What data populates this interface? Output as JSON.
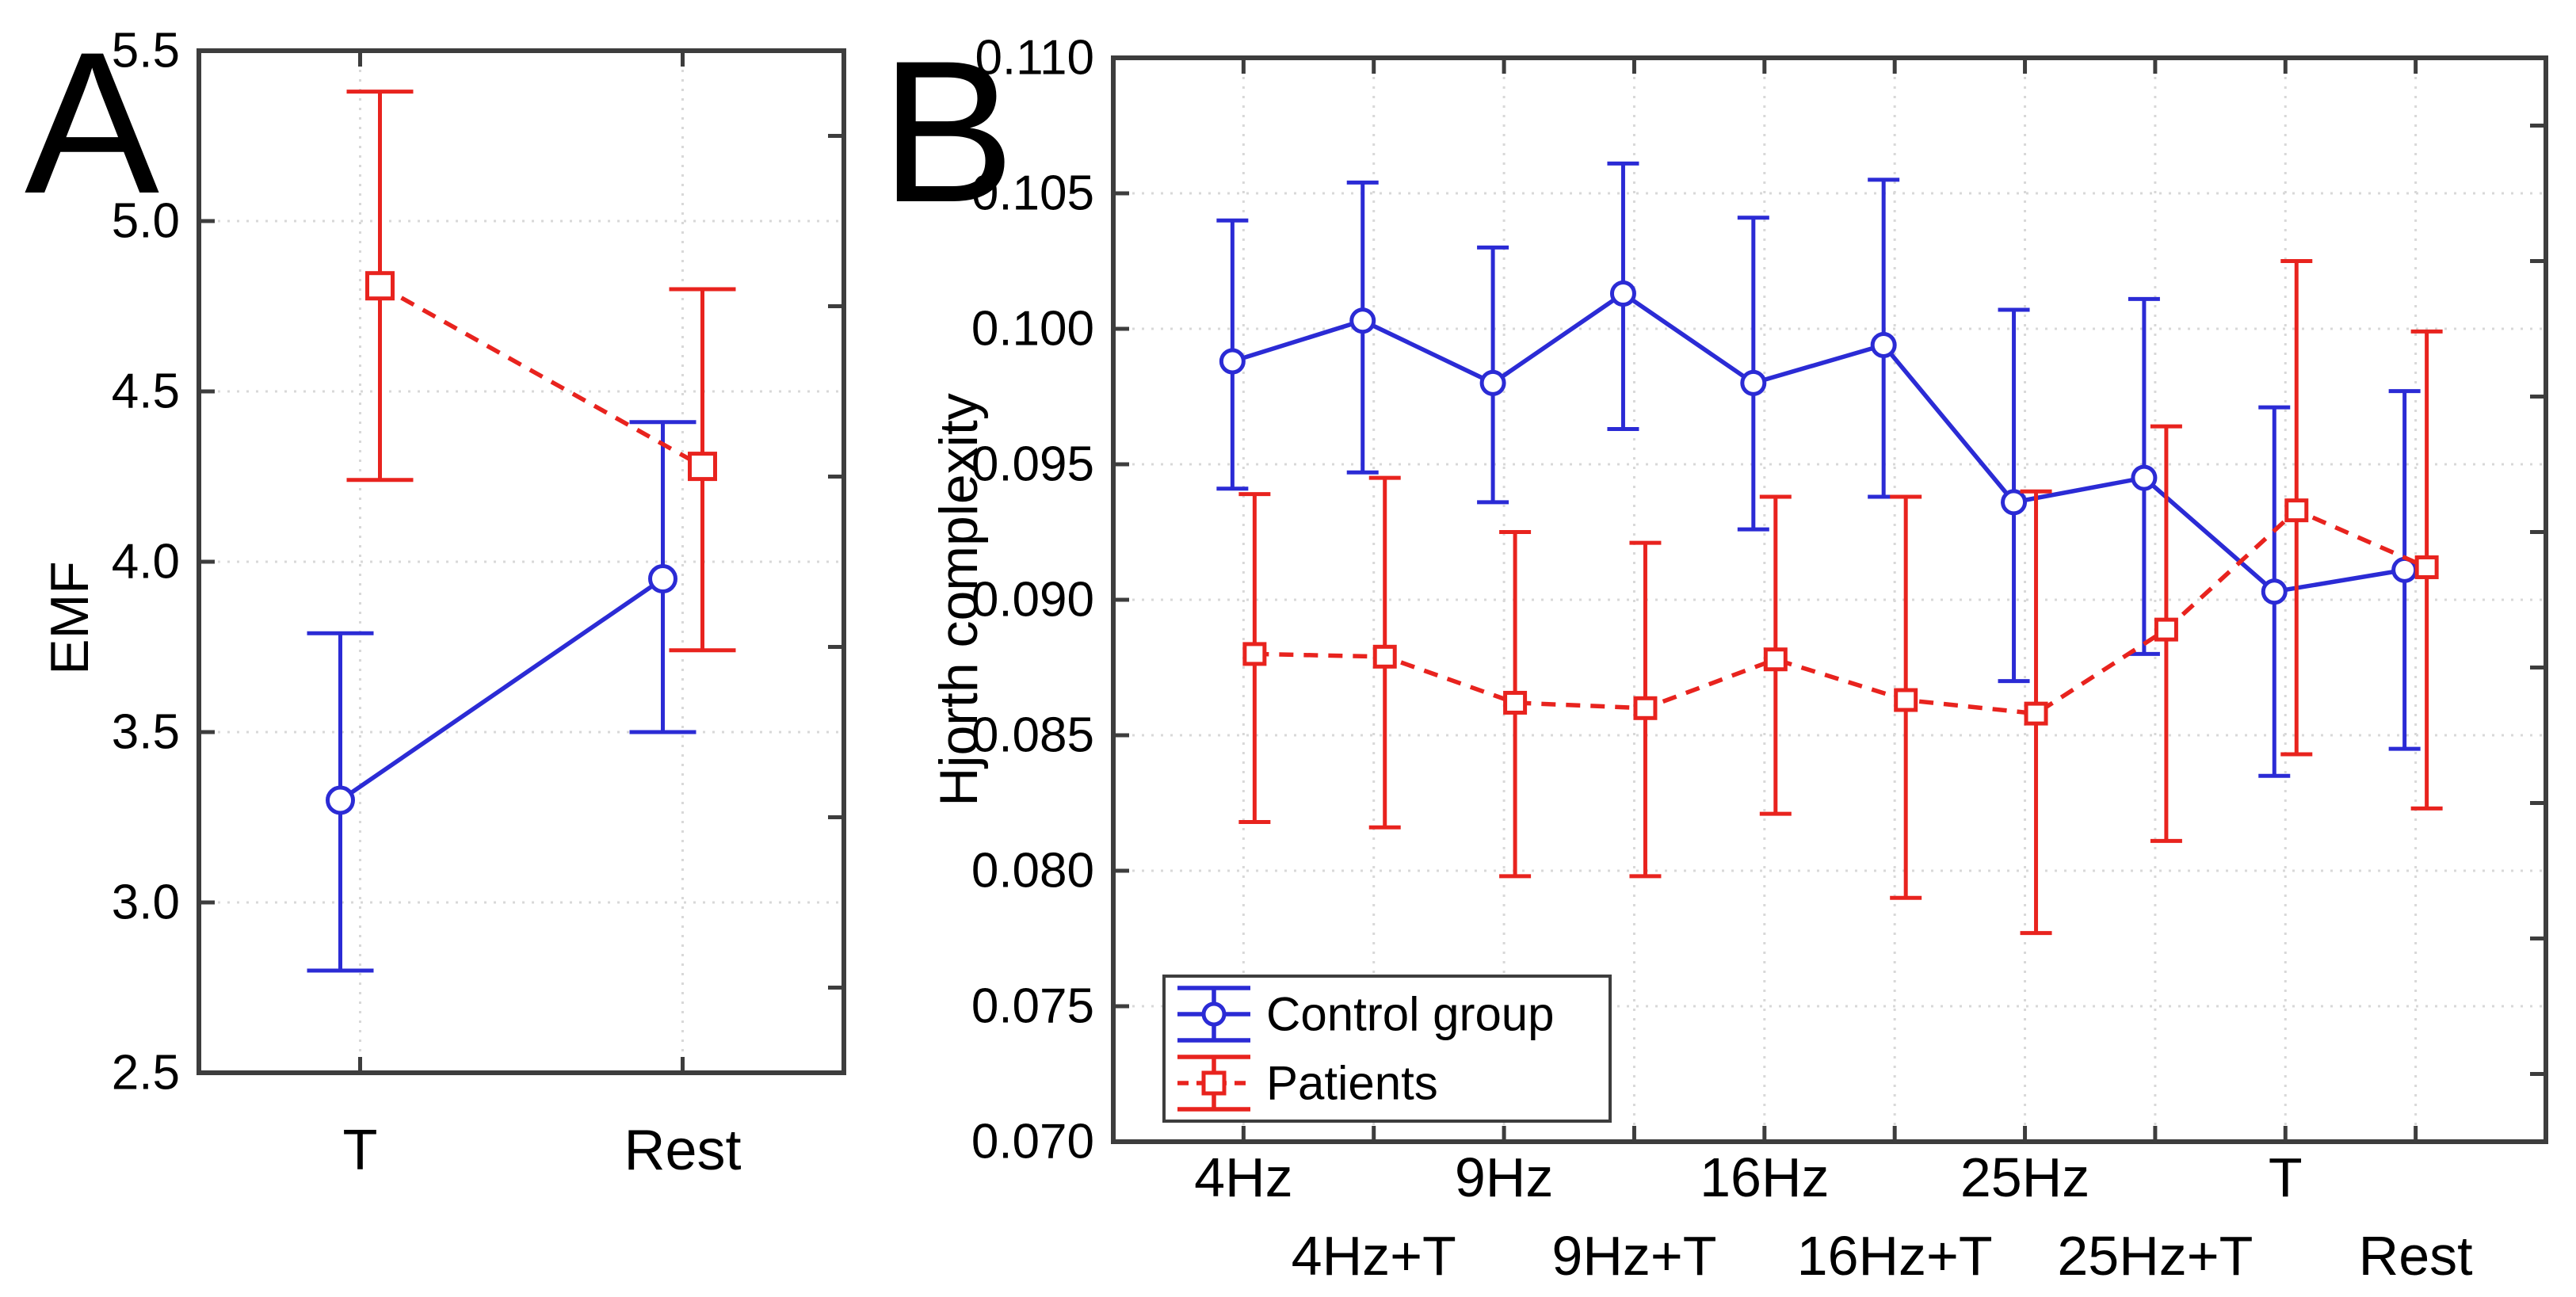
{
  "figure": {
    "background": "#ffffff",
    "panel_labels": [
      "A",
      "B"
    ]
  },
  "colors": {
    "axis": "#3d3d3d",
    "grid": "#d8d8d8",
    "text": "#000000",
    "control_group": "#2b2bd5",
    "patients": "#e8231e"
  },
  "legend": {
    "entries": [
      {
        "label": "Control group"
      },
      {
        "label": "Patients"
      }
    ]
  },
  "chart_data": [
    {
      "type": "line",
      "panel_label": "A",
      "title": "",
      "xlabel": "",
      "ylabel": "EMF",
      "ylim": [
        2.5,
        5.5
      ],
      "ytick_step": 0.5,
      "ytick_decimals": 1,
      "grid": true,
      "legend_position": null,
      "categories": [
        "T",
        "Rest"
      ],
      "series": [
        {
          "name": "Control group",
          "color": "#2b2bd5",
          "line_style": "solid",
          "marker": "circle",
          "values": [
            3.3,
            3.95
          ],
          "err_low": [
            2.8,
            3.5
          ],
          "err_high": [
            3.79,
            4.41
          ]
        },
        {
          "name": "Patients",
          "color": "#e8231e",
          "line_style": "dashed",
          "marker": "square",
          "values": [
            4.81,
            4.28
          ],
          "err_low": [
            4.24,
            3.74
          ],
          "err_high": [
            5.38,
            4.8
          ]
        }
      ]
    },
    {
      "type": "line",
      "panel_label": "B",
      "title": "",
      "xlabel": "",
      "ylabel": "Hjorth complexity",
      "ylim": [
        0.07,
        0.11
      ],
      "ytick_step": 0.005,
      "ytick_decimals": 3,
      "grid": true,
      "legend_position": "bottom-left",
      "legend_entries": [
        "Control group",
        "Patients"
      ],
      "categories": [
        "4Hz",
        "4Hz+T",
        "9Hz",
        "9Hz+T",
        "16Hz",
        "16Hz+T",
        "25Hz",
        "25Hz+T",
        "T",
        "Rest"
      ],
      "x_label_rows": [
        1,
        2,
        1,
        2,
        1,
        2,
        1,
        2,
        1,
        2
      ],
      "series": [
        {
          "name": "Control group",
          "color": "#2b2bd5",
          "line_style": "solid",
          "marker": "circle",
          "values": [
            0.0988,
            0.1003,
            0.098,
            0.1013,
            0.098,
            0.0994,
            0.0936,
            0.0945,
            0.0903,
            0.0911
          ],
          "err_low": [
            0.0941,
            0.0947,
            0.0936,
            0.0963,
            0.0926,
            0.0938,
            0.087,
            0.088,
            0.0835,
            0.0845
          ],
          "err_high": [
            0.104,
            0.1054,
            0.103,
            0.1061,
            0.1041,
            0.1055,
            0.1007,
            0.1011,
            0.0971,
            0.0977
          ]
        },
        {
          "name": "Patients",
          "color": "#e8231e",
          "line_style": "dashed",
          "marker": "square",
          "values": [
            0.088,
            0.0879,
            0.0862,
            0.086,
            0.0878,
            0.0863,
            0.0858,
            0.0889,
            0.0933,
            0.0912
          ],
          "err_low": [
            0.0818,
            0.0816,
            0.0798,
            0.0798,
            0.0821,
            0.079,
            0.0777,
            0.0811,
            0.0843,
            0.0823
          ],
          "err_high": [
            0.0939,
            0.0945,
            0.0925,
            0.0921,
            0.0938,
            0.0938,
            0.094,
            0.0964,
            0.1025,
            0.0999
          ]
        }
      ]
    }
  ]
}
